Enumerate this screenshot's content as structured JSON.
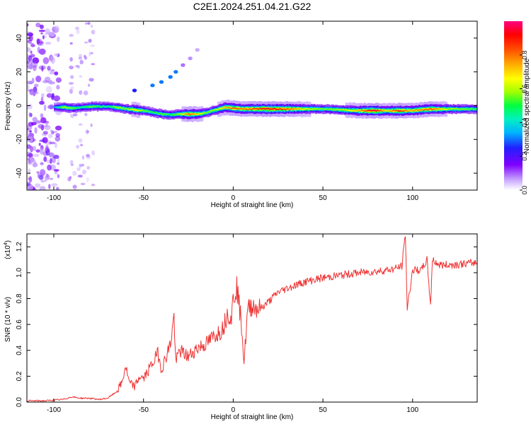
{
  "title": "C2E1.2024.251.04.21.G22",
  "chart_data": [
    {
      "type": "heatmap",
      "xlabel": "Height of straight line (km)",
      "ylabel": "Frequency (Hz)",
      "xlim": [
        -115,
        136
      ],
      "ylim": [
        -50,
        50
      ],
      "xticks": [
        -100,
        -50,
        0,
        50,
        100
      ],
      "yticks": [
        -40,
        -20,
        0,
        20,
        40
      ],
      "colorbar": {
        "label": "Normalized spectral amplitude",
        "range": [
          0.0,
          1.0
        ],
        "ticks": [
          "0.0",
          "0.2",
          "0.4",
          "0.6",
          "0.8"
        ],
        "tick_values": [
          0.0,
          0.2,
          0.4,
          0.6,
          0.8
        ],
        "colors": [
          "#ffffff",
          "#b88cff",
          "#7f00ff",
          "#2020ff",
          "#00b4ff",
          "#00f0c0",
          "#00ff40",
          "#a0ff00",
          "#ffff00",
          "#ffb000",
          "#ff5000",
          "#ff0000",
          "#ff0080"
        ]
      },
      "ridge": [
        {
          "x": -100,
          "y": -1,
          "amp": 0.35
        },
        {
          "x": -95,
          "y": -1,
          "amp": 0.6
        },
        {
          "x": -90,
          "y": -1.5,
          "amp": 0.55
        },
        {
          "x": -85,
          "y": -1,
          "amp": 0.45
        },
        {
          "x": -80,
          "y": -0.5,
          "amp": 0.55
        },
        {
          "x": -75,
          "y": -0.5,
          "amp": 0.5
        },
        {
          "x": -70,
          "y": -0.5,
          "amp": 0.45
        },
        {
          "x": -65,
          "y": -1,
          "amp": 0.6
        },
        {
          "x": -60,
          "y": -2,
          "amp": 0.55
        },
        {
          "x": -55,
          "y": -2.5,
          "amp": 0.7
        },
        {
          "x": -50,
          "y": -3,
          "amp": 0.55
        },
        {
          "x": -45,
          "y": -4,
          "amp": 0.5
        },
        {
          "x": -40,
          "y": -5,
          "amp": 0.55
        },
        {
          "x": -35,
          "y": -5.5,
          "amp": 0.5
        },
        {
          "x": -30,
          "y": -5,
          "amp": 0.6
        },
        {
          "x": -25,
          "y": -5,
          "amp": 0.85
        },
        {
          "x": -20,
          "y": -5,
          "amp": 0.7
        },
        {
          "x": -15,
          "y": -4,
          "amp": 0.55
        },
        {
          "x": -10,
          "y": -2.5,
          "amp": 0.6
        },
        {
          "x": -5,
          "y": -1,
          "amp": 0.75
        },
        {
          "x": 0,
          "y": -1.5,
          "amp": 0.85
        },
        {
          "x": 5,
          "y": -2,
          "amp": 0.8
        },
        {
          "x": 10,
          "y": -2,
          "amp": 0.85
        },
        {
          "x": 20,
          "y": -2,
          "amp": 0.95
        },
        {
          "x": 30,
          "y": -2,
          "amp": 0.85
        },
        {
          "x": 40,
          "y": -2,
          "amp": 0.65
        },
        {
          "x": 50,
          "y": -2,
          "amp": 0.55
        },
        {
          "x": 60,
          "y": -2.5,
          "amp": 0.6
        },
        {
          "x": 70,
          "y": -3,
          "amp": 0.75
        },
        {
          "x": 78,
          "y": -3,
          "amp": 0.98
        },
        {
          "x": 85,
          "y": -3,
          "amp": 0.7
        },
        {
          "x": 92,
          "y": -3,
          "amp": 0.9
        },
        {
          "x": 98,
          "y": -3,
          "amp": 0.75
        },
        {
          "x": 104,
          "y": -2.5,
          "amp": 0.8
        },
        {
          "x": 110,
          "y": -2,
          "amp": 0.85
        },
        {
          "x": 120,
          "y": -2,
          "amp": 0.6
        },
        {
          "x": 130,
          "y": -2,
          "amp": 0.55
        },
        {
          "x": 136,
          "y": -2,
          "amp": 0.5
        }
      ],
      "branch": [
        {
          "x": -55,
          "y": 9,
          "amp": 0.25
        },
        {
          "x": -45,
          "y": 12,
          "amp": 0.3
        },
        {
          "x": -40,
          "y": 14,
          "amp": 0.3
        },
        {
          "x": -35,
          "y": 17,
          "amp": 0.3
        },
        {
          "x": -32,
          "y": 20,
          "amp": 0.3
        },
        {
          "x": -28,
          "y": 24,
          "amp": 0.1
        },
        {
          "x": -24,
          "y": 28,
          "amp": 0.08
        },
        {
          "x": -20,
          "y": 33,
          "amp": 0.06
        }
      ]
    },
    {
      "type": "line",
      "xlabel": "Height of straight line (km)",
      "ylabel": "SNR (10 * v/v)",
      "y_multiplier": "(x10",
      "y_multiplier_exp": "4",
      "y_multiplier_close": ")",
      "xlim": [
        -115,
        136
      ],
      "ylim": [
        0.0,
        1.3
      ],
      "xticks": [
        -100,
        -50,
        0,
        50,
        100
      ],
      "yticks": [
        0.0,
        0.2,
        0.4,
        0.6,
        0.8,
        1.0,
        1.2
      ],
      "ytick_labels": [
        "0.0",
        "0.2",
        "0.4",
        "0.6",
        "0.8",
        "1.0",
        "1.2"
      ],
      "series": [
        {
          "color": "#ee3333",
          "x": [
            -115,
            -105,
            -95,
            -90,
            -85,
            -80,
            -75,
            -70,
            -65,
            -62,
            -60,
            -58,
            -55,
            -52,
            -50,
            -45,
            -42,
            -40,
            -35,
            -33,
            -32,
            -30,
            -25,
            -20,
            -15,
            -10,
            -7,
            -5,
            -3,
            -1,
            0,
            2,
            5,
            6,
            8,
            10,
            15,
            20,
            25,
            30,
            40,
            50,
            60,
            70,
            80,
            90,
            94,
            96,
            97,
            100,
            105,
            108,
            110,
            111,
            115,
            120,
            130,
            136
          ],
          "y": [
            0.01,
            0.01,
            0.02,
            0.04,
            0.03,
            0.03,
            0.02,
            0.03,
            0.08,
            0.15,
            0.28,
            0.15,
            0.12,
            0.2,
            0.18,
            0.3,
            0.38,
            0.25,
            0.45,
            0.66,
            0.3,
            0.4,
            0.35,
            0.42,
            0.45,
            0.52,
            0.55,
            0.6,
            0.7,
            0.65,
            0.8,
            0.9,
            0.55,
            0.3,
            0.7,
            0.75,
            0.72,
            0.78,
            0.85,
            0.88,
            0.93,
            0.96,
            0.98,
            1.0,
            1.01,
            1.03,
            1.05,
            1.3,
            0.72,
            1.02,
            1.02,
            1.1,
            0.75,
            1.1,
            1.06,
            1.06,
            1.07,
            1.08
          ]
        }
      ]
    }
  ]
}
